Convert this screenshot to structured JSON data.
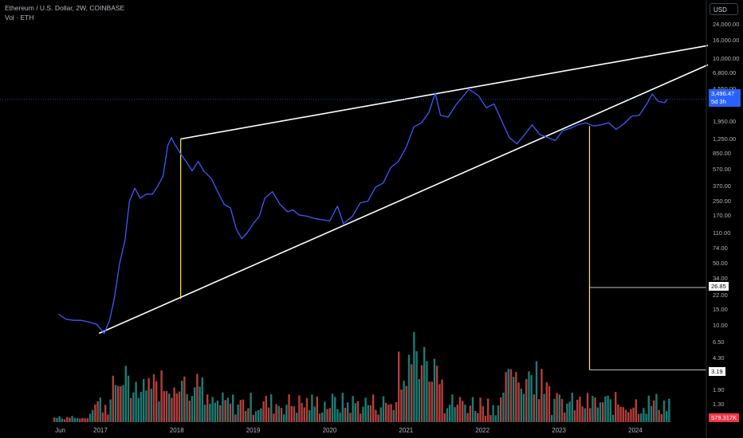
{
  "header": {
    "symbol_title": "Ethereum / U.S. Dollar, 2W, COINBASE",
    "volume_label": "Vol · ETH"
  },
  "currency": "USD",
  "price_axis": {
    "ticks": [
      "24,000.00",
      "16,000.00",
      "10,000.00",
      "6,800.00",
      "4,550.00",
      "1,950.00",
      "1,250.00",
      "850.00",
      "570.00",
      "370.00",
      "250.00",
      "170.00",
      "110.00",
      "74.00",
      "50.00",
      "34.00",
      "22.00",
      "15.00",
      "10.00",
      "6.50",
      "4.30",
      "1.90",
      "1.30"
    ],
    "current_price": "3,496.47",
    "countdown": "5d 3h",
    "level_a": "26.85",
    "level_b": "3.19",
    "volume_value": "579.317K"
  },
  "time_axis": {
    "ticks": [
      "Jun",
      "2017",
      "2018",
      "2019",
      "2020",
      "2021",
      "2022",
      "2023",
      "2024"
    ]
  },
  "colors": {
    "background": "#000000",
    "price_line": "#3d5afe",
    "trendlines": "#ffffff",
    "measure_lines": "#ffeb3b",
    "volume_up": "#26a69a",
    "volume_down": "#ef5350",
    "current_price_bg": "#2962ff"
  },
  "chart_data": {
    "type": "line",
    "title": "Ethereum / U.S. Dollar, 2W, COINBASE",
    "log_scale": true,
    "x_unit": "year",
    "series": [
      {
        "name": "ETH/USD",
        "x": [
          2016.45,
          2016.55,
          2016.65,
          2016.75,
          2016.85,
          2016.95,
          2017.05,
          2017.12,
          2017.18,
          2017.25,
          2017.32,
          2017.38,
          2017.45,
          2017.52,
          2017.6,
          2017.68,
          2017.75,
          2017.82,
          2017.88,
          2017.93,
          2017.97,
          2018.05,
          2018.12,
          2018.2,
          2018.28,
          2018.35,
          2018.45,
          2018.55,
          2018.62,
          2018.7,
          2018.78,
          2018.85,
          2018.92,
          2019.0,
          2019.08,
          2019.15,
          2019.25,
          2019.35,
          2019.45,
          2019.52,
          2019.6,
          2019.7,
          2019.8,
          2019.9,
          2020.0,
          2020.1,
          2020.18,
          2020.3,
          2020.4,
          2020.5,
          2020.6,
          2020.7,
          2020.8,
          2020.9,
          2021.0,
          2021.1,
          2021.2,
          2021.3,
          2021.38,
          2021.45,
          2021.55,
          2021.65,
          2021.75,
          2021.82,
          2021.88,
          2021.95,
          2022.05,
          2022.15,
          2022.25,
          2022.35,
          2022.45,
          2022.55,
          2022.65,
          2022.75,
          2022.85,
          2022.95,
          2023.05,
          2023.15,
          2023.25,
          2023.35,
          2023.45,
          2023.55,
          2023.65,
          2023.75,
          2023.85,
          2023.95,
          2024.05,
          2024.15,
          2024.22,
          2024.3,
          2024.38,
          2024.42
        ],
        "values": [
          13.5,
          11.8,
          11.5,
          11.5,
          11.0,
          10.4,
          8.2,
          11.5,
          20,
          50,
          90,
          250,
          350,
          270,
          300,
          300,
          370,
          480,
          1050,
          1300,
          1100,
          850,
          700,
          550,
          700,
          550,
          450,
          300,
          230,
          210,
          120,
          95,
          110,
          140,
          170,
          270,
          320,
          230,
          190,
          200,
          175,
          170,
          160,
          155,
          150,
          220,
          140,
          170,
          240,
          250,
          360,
          400,
          600,
          700,
          1000,
          1700,
          1900,
          2500,
          4100,
          2300,
          2200,
          3000,
          3800,
          4500,
          4200,
          3800,
          2800,
          3100,
          2000,
          1300,
          1100,
          1400,
          1800,
          1400,
          1300,
          1200,
          1550,
          1650,
          1800,
          1900,
          1750,
          1800,
          1900,
          1600,
          1850,
          2250,
          2300,
          3100,
          4000,
          3300,
          3200,
          3496.47
        ]
      }
    ],
    "trendlines": [
      {
        "from": [
          2016.98,
          8.2
        ],
        "to": [
          2024.95,
          8500
        ]
      },
      {
        "from": [
          2018.05,
          1250
        ],
        "to": [
          2024.95,
          14000
        ]
      },
      {
        "from": [
          2018.05,
          1250
        ],
        "to": [
          2018.05,
          20
        ]
      },
      {
        "from": [
          2023.4,
          1750
        ],
        "to": [
          2023.4,
          3.19
        ]
      },
      {
        "from": [
          2023.4,
          26.85
        ],
        "to": [
          2024.95,
          26.85
        ]
      },
      {
        "from": [
          2023.4,
          3.19
        ],
        "to": [
          2024.95,
          3.19
        ]
      }
    ],
    "volume": {
      "name": "Vol · ETH",
      "last": "579.317K"
    },
    "grid": false,
    "y_ticks": [
      24000,
      16000,
      10000,
      6800,
      4550,
      1950,
      1250,
      850,
      570,
      370,
      250,
      170,
      110,
      74,
      50,
      34,
      22,
      15,
      10,
      6.5,
      4.3,
      1.9,
      1.3
    ]
  }
}
